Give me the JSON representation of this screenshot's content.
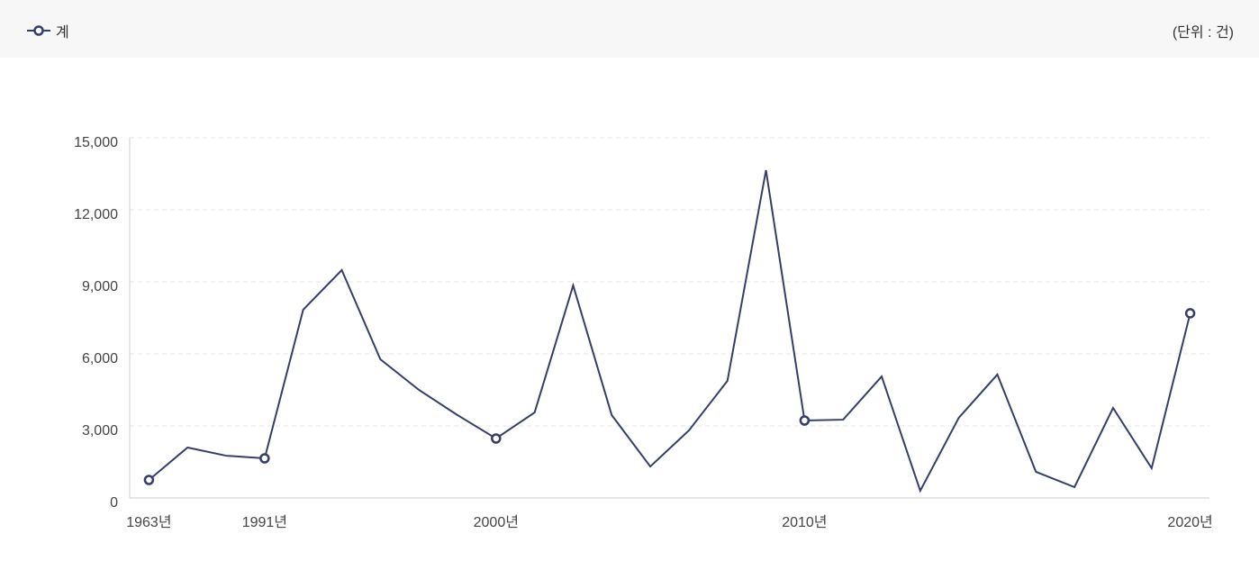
{
  "chart_data": {
    "type": "line",
    "unit": "(단위 : 건)",
    "categories": [
      "1963년",
      null,
      null,
      "1991년",
      null,
      null,
      null,
      null,
      null,
      "2000년",
      null,
      null,
      null,
      null,
      null,
      null,
      null,
      "2010년",
      null,
      null,
      null,
      null,
      null,
      null,
      null,
      null,
      null,
      "2020년"
    ],
    "series": [
      {
        "name": "계",
        "color": "#353d6b",
        "values": [
          750,
          2100,
          1760,
          1650,
          7840,
          9490,
          5775,
          4500,
          3450,
          2475,
          3560,
          8850,
          3450,
          1310,
          2810,
          4875,
          13650,
          3225,
          3260,
          5060,
          300,
          3340,
          5140,
          1090,
          450,
          3750,
          1240,
          7690
        ]
      }
    ],
    "ylim": [
      0,
      15000
    ],
    "yticks": [
      0,
      {
        "value": 3000,
        "label": "3,000"
      },
      {
        "value": 6000,
        "label": "6,000"
      },
      {
        "value": 9000,
        "label": "9,000"
      },
      {
        "value": 12000,
        "label": "12,000"
      },
      {
        "value": 15000,
        "label": "15,000"
      }
    ],
    "grid": true
  }
}
